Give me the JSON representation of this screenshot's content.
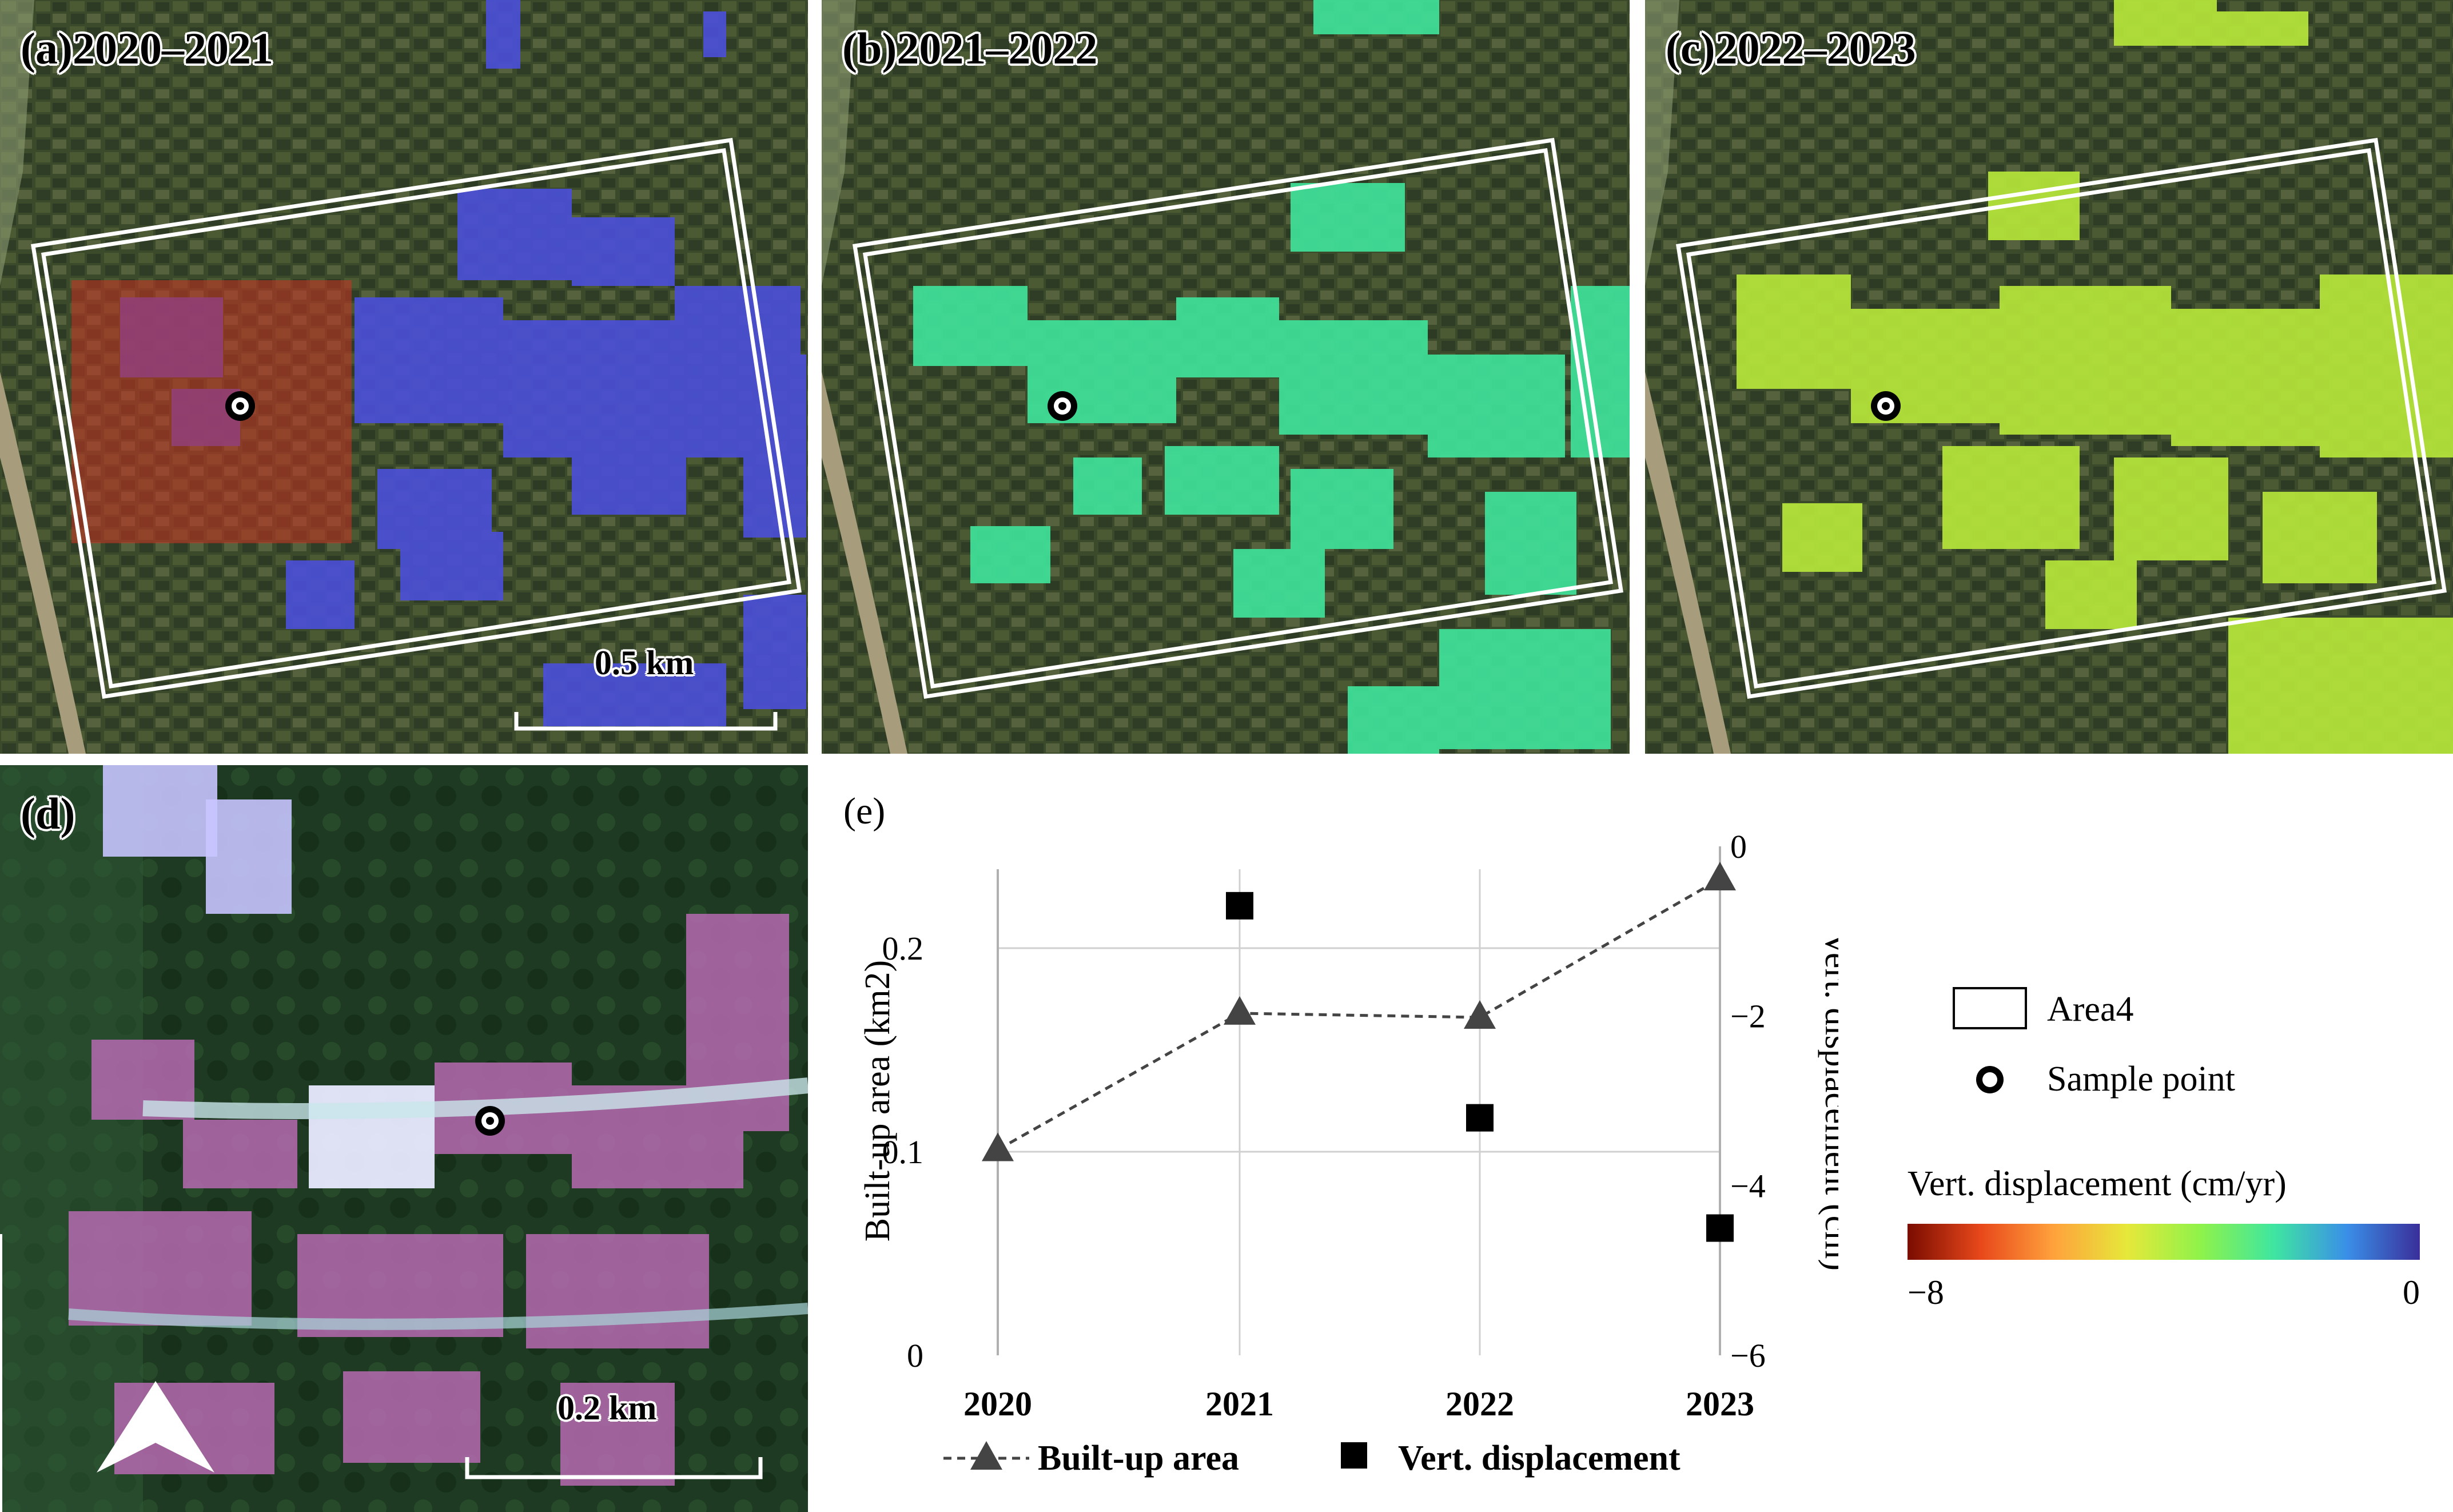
{
  "panels": {
    "a": {
      "label": "(a)2020–2021",
      "scale": "0.5 km"
    },
    "b": {
      "label": "(b)2021–2022"
    },
    "c": {
      "label": "(c)2022–2023"
    },
    "d": {
      "label": "(d)",
      "scale": "0.2 km"
    }
  },
  "colors": {
    "panel_a_overlay": "#4b4fd6",
    "panel_b_overlay": "#3fe29a",
    "panel_c_overlay": "#b6e63a",
    "panel_d_highlight": "#cc3322"
  },
  "icons": [
    "sample-point-icon",
    "north-arrow-icon"
  ],
  "legend": {
    "area_label": "Area4",
    "sample_label": "Sample point",
    "colorbar_title": "Vert.  displacement (cm/yr)",
    "colorbar_min": "−8",
    "colorbar_max": "0",
    "colorbar_colors": [
      "#7a0c00",
      "#e8481b",
      "#ffa23c",
      "#e6e83a",
      "#8ff24a",
      "#3fe6a0",
      "#3a8fe8",
      "#3a2f9a"
    ]
  },
  "chart_data": {
    "type": "line",
    "panel_label": "(e)",
    "categories": [
      "2020",
      "2021",
      "2022",
      "2023"
    ],
    "series": [
      {
        "name": "Built-up area",
        "axis": "left",
        "style": "dashed-triangle",
        "values": [
          0.101,
          0.168,
          0.166,
          0.234
        ]
      },
      {
        "name": "Vert. displacement",
        "axis": "right",
        "style": "square-marker",
        "values": [
          null,
          -0.7,
          -3.2,
          -4.5
        ]
      }
    ],
    "y_left": {
      "label": "Built-up area (km2)",
      "lim": [
        0,
        0.25
      ],
      "ticks": [
        "0",
        "0.1",
        "0.2"
      ],
      "tick_values": [
        0,
        0.1,
        0.2
      ]
    },
    "y_right": {
      "label": "Vert.  displacement (cm)",
      "lim": [
        -6,
        0
      ],
      "ticks": [
        "0",
        "−2",
        "−4",
        "−6"
      ],
      "tick_values": [
        0,
        -2,
        -4,
        -6
      ]
    },
    "legend_entries": [
      "Built-up area",
      "Vert. displacement"
    ]
  }
}
